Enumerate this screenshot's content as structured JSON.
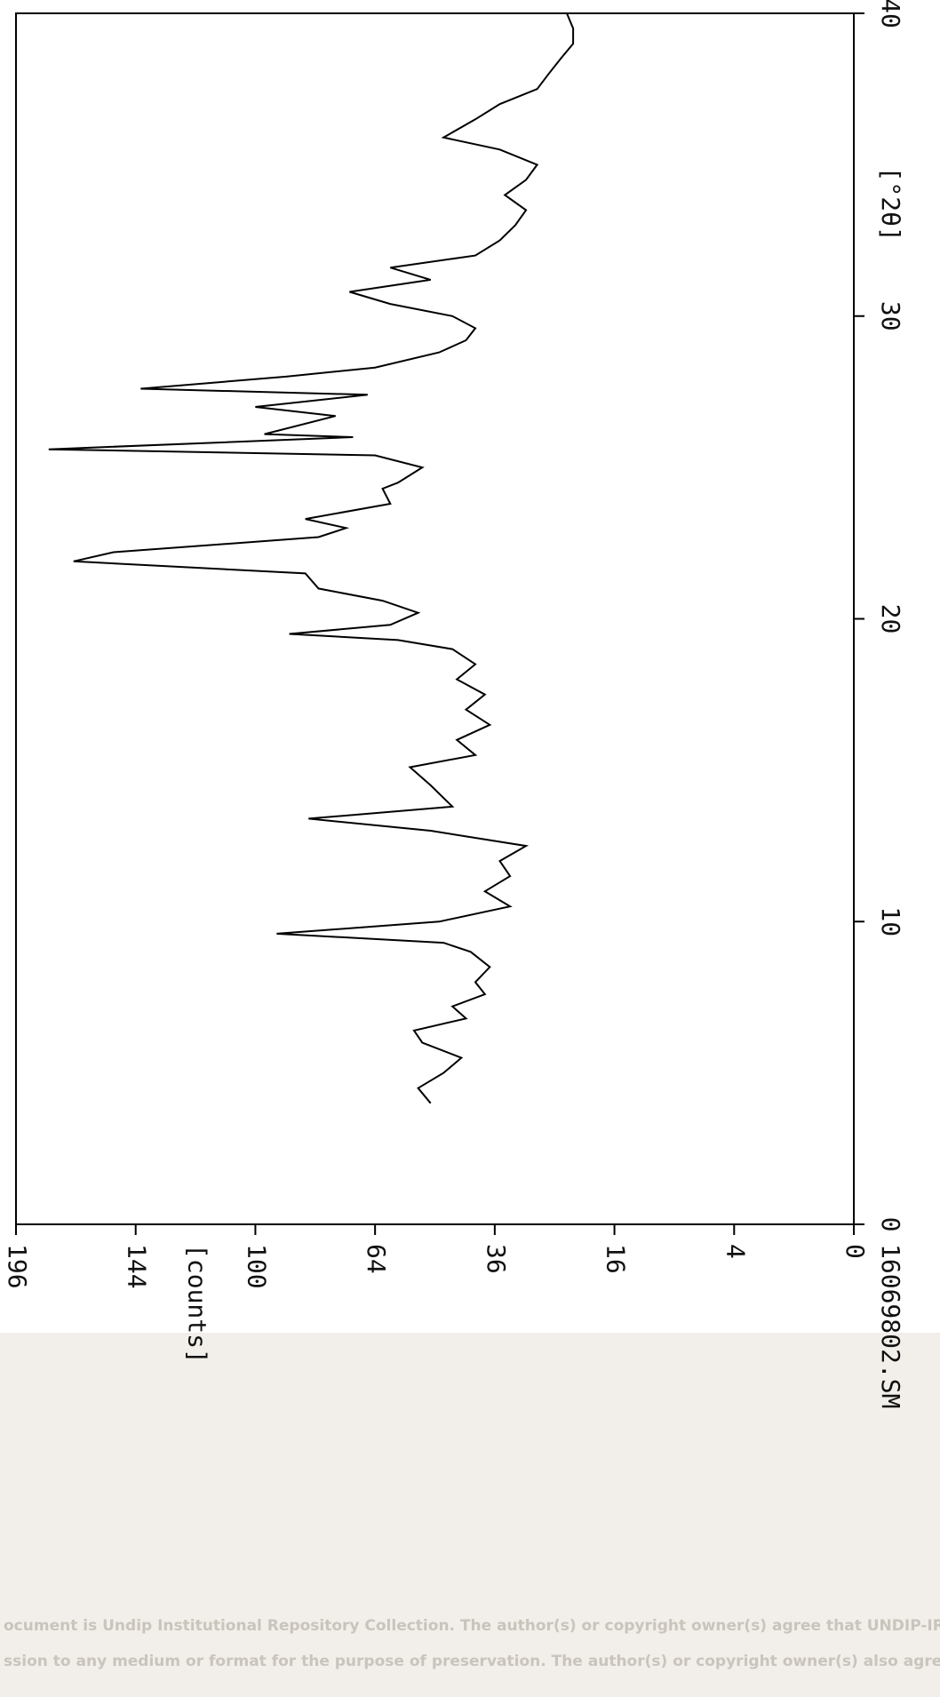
{
  "chart_data": {
    "type": "line",
    "title": "16069802.SM",
    "xlabel": "[°2θ]",
    "ylabel": "[counts]",
    "yscale": "sqrt",
    "color": "#000000",
    "x": [
      4.0,
      4.5,
      5.0,
      5.5,
      6.0,
      6.4,
      6.8,
      7.2,
      7.6,
      8.0,
      8.5,
      9.0,
      9.3,
      9.6,
      10.0,
      10.5,
      11.0,
      11.5,
      12.0,
      12.5,
      13.0,
      13.4,
      13.8,
      14.5,
      15.1,
      15.5,
      16.0,
      16.5,
      17.0,
      17.5,
      18.0,
      18.5,
      19.0,
      19.3,
      19.5,
      19.8,
      20.2,
      20.6,
      21.0,
      21.5,
      21.9,
      22.2,
      22.7,
      23.0,
      23.3,
      23.8,
      24.3,
      24.5,
      25.0,
      25.4,
      25.6,
      26.0,
      26.1,
      26.7,
      27.0,
      27.4,
      27.6,
      28.0,
      28.3,
      28.8,
      29.2,
      29.6,
      30.0,
      30.4,
      30.8,
      31.2,
      31.6,
      32.0,
      32.5,
      33.0,
      33.5,
      34.0,
      34.5,
      35.0,
      35.5,
      35.9,
      36.5,
      37.0,
      37.5,
      38.0,
      38.5,
      39.0,
      39.5,
      40.0
    ],
    "values": [
      50,
      53,
      47,
      43,
      52,
      54,
      42,
      45,
      38,
      40,
      37,
      41,
      47,
      93,
      48,
      33,
      38,
      33,
      35,
      30,
      50,
      83,
      45,
      50,
      55,
      40,
      44,
      37,
      42,
      38,
      44,
      40,
      45,
      58,
      89,
      60,
      53,
      62,
      80,
      84,
      170,
      153,
      80,
      72,
      84,
      60,
      62,
      58,
      52,
      64,
      181,
      70,
      97,
      75,
      100,
      66,
      142,
      90,
      64,
      48,
      42,
      40,
      45,
      60,
      71,
      50,
      60,
      40,
      35,
      32,
      30,
      34,
      30,
      28,
      35,
      47,
      40,
      35,
      28,
      26,
      24,
      22,
      22,
      23
    ],
    "xlim": [
      0,
      40
    ],
    "xticks": [
      0,
      10,
      20,
      30,
      40
    ],
    "ylim": [
      0,
      196
    ],
    "yticks": [
      0,
      4,
      16,
      36,
      64,
      100,
      144,
      196
    ]
  },
  "footer": {
    "lines": [
      "ocument is Undip Institutional Repository Collection.  The author(s) or copyright owner(s) agree that UNDIP-IR",
      "ssion to any medium or format for the purpose of preservation. The author(s) or copyright owner(s) also agree th"
    ]
  }
}
